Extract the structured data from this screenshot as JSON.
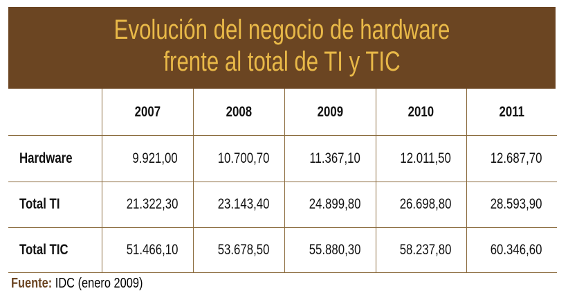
{
  "header": {
    "title": [
      "Evolución del negocio de hardware",
      "frente al total de TI y TIC"
    ]
  },
  "table": {
    "columns": [
      "2007",
      "2008",
      "2009",
      "2010",
      "2011"
    ],
    "rows": [
      [
        "Hardware",
        "9.921,00",
        "10.700,70",
        "11.367,10",
        "12.011,50",
        "12.687,70"
      ],
      [
        "Total TI",
        "21.322,30",
        "23.143,40",
        "24.899,80",
        "26.698,80",
        "28.593,90"
      ],
      [
        "Total TIC",
        "51.466,10",
        "53.678,50",
        "55.880,30",
        "58.237,80",
        "60.346,60"
      ]
    ]
  },
  "source": {
    "label": "Fuente:",
    "text": "IDC (enero 2009)"
  }
}
